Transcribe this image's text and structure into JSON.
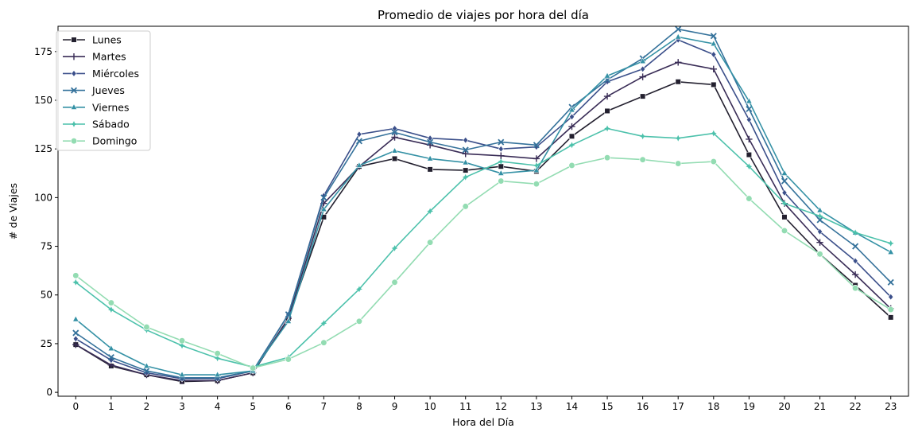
{
  "chart_data": {
    "type": "line",
    "title": "Promedio de viajes por hora del día",
    "xlabel": "Hora del Día",
    "ylabel": "# de Viajes",
    "x": [
      0,
      1,
      2,
      3,
      4,
      5,
      6,
      7,
      8,
      9,
      10,
      11,
      12,
      13,
      14,
      15,
      16,
      17,
      18,
      19,
      20,
      21,
      22,
      23
    ],
    "xlim": [
      -0.5,
      23.5
    ],
    "ylim": [
      -2,
      188
    ],
    "yticks": [
      0,
      25,
      50,
      75,
      100,
      125,
      150,
      175
    ],
    "grid": false,
    "legend_position": "top-left",
    "series": [
      {
        "name": "Lunes",
        "color": "#23202f",
        "marker": "square",
        "values": [
          24.5,
          13.5,
          9,
          5.5,
          6,
          10,
          38,
          90,
          116,
          120,
          114.5,
          114,
          116,
          113.5,
          131.5,
          144.5,
          152,
          159.5,
          158,
          122,
          90,
          71,
          55,
          38.5
        ]
      },
      {
        "name": "Martes",
        "color": "#392c56",
        "marker": "plus",
        "values": [
          24.5,
          14,
          9,
          6,
          6,
          10,
          38,
          97,
          116,
          131,
          127,
          122.5,
          121.5,
          120,
          136.5,
          152,
          162,
          169.5,
          166,
          130,
          97,
          77,
          60.5,
          43
        ]
      },
      {
        "name": "Miércoles",
        "color": "#3b4f8a",
        "marker": "diamond",
        "values": [
          27.5,
          16.5,
          10,
          7,
          7,
          11,
          40,
          101,
          132.5,
          135.5,
          130.5,
          129.5,
          125,
          126,
          141.5,
          159.5,
          166,
          181,
          173.5,
          140,
          102.5,
          82.5,
          67.5,
          49
        ]
      },
      {
        "name": "Jueves",
        "color": "#35729b",
        "marker": "x",
        "values": [
          30.5,
          18,
          11,
          7.5,
          7.5,
          11,
          40,
          100,
          129,
          133.5,
          128.5,
          124.5,
          128.5,
          127,
          146.5,
          160.5,
          171.5,
          186.5,
          183,
          145.5,
          108.5,
          88.5,
          75,
          56.5
        ]
      },
      {
        "name": "Viernes",
        "color": "#3491a5",
        "marker": "triangle",
        "values": [
          37.5,
          22.5,
          13.5,
          9,
          9,
          11,
          36.5,
          94,
          116.5,
          124,
          120,
          118,
          112.5,
          114,
          145,
          162.5,
          170,
          182.5,
          179,
          149.5,
          112.5,
          93.5,
          82,
          72
        ]
      },
      {
        "name": "Sábado",
        "color": "#4cc1ab",
        "marker": "star",
        "values": [
          56.5,
          42.5,
          32,
          24,
          17.5,
          13,
          18,
          35.5,
          53,
          74,
          93,
          110.5,
          118.5,
          116.5,
          127,
          135.5,
          131.5,
          130.5,
          133,
          116,
          97,
          90.5,
          82,
          76.5
        ]
      },
      {
        "name": "Domingo",
        "color": "#93dcb2",
        "marker": "circle",
        "values": [
          60,
          46,
          33.5,
          26.5,
          20,
          12.5,
          17,
          25.5,
          36.5,
          56.5,
          77,
          95.5,
          108.5,
          107,
          116.5,
          120.5,
          119.5,
          117.5,
          118.5,
          99.5,
          83,
          71,
          53.5,
          42.5
        ]
      }
    ]
  }
}
